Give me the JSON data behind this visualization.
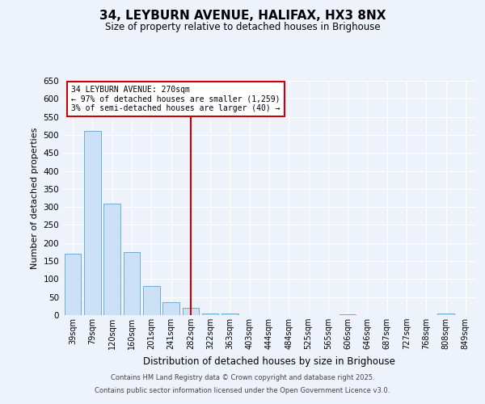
{
  "title": "34, LEYBURN AVENUE, HALIFAX, HX3 8NX",
  "subtitle": "Size of property relative to detached houses in Brighouse",
  "xlabel": "Distribution of detached houses by size in Brighouse",
  "ylabel": "Number of detached properties",
  "categories": [
    "39sqm",
    "79sqm",
    "120sqm",
    "160sqm",
    "201sqm",
    "241sqm",
    "282sqm",
    "322sqm",
    "363sqm",
    "403sqm",
    "444sqm",
    "484sqm",
    "525sqm",
    "565sqm",
    "606sqm",
    "646sqm",
    "687sqm",
    "727sqm",
    "768sqm",
    "808sqm",
    "849sqm"
  ],
  "values": [
    170,
    510,
    310,
    175,
    80,
    35,
    20,
    5,
    5,
    0,
    0,
    0,
    0,
    0,
    3,
    0,
    0,
    0,
    0,
    5,
    0
  ],
  "bar_color": "#cce0f5",
  "bar_edge_color": "#6aaed6",
  "red_line_index": 6,
  "red_line_color": "#cc0000",
  "annotation_title": "34 LEYBURN AVENUE: 270sqm",
  "annotation_line1": "← 97% of detached houses are smaller (1,259)",
  "annotation_line2": "3% of semi-detached houses are larger (40) →",
  "annotation_box_color": "#cc0000",
  "ylim": [
    0,
    650
  ],
  "yticks": [
    0,
    50,
    100,
    150,
    200,
    250,
    300,
    350,
    400,
    450,
    500,
    550,
    600,
    650
  ],
  "background_color": "#eef2fb",
  "grid_color": "#ffffff",
  "footer_line1": "Contains HM Land Registry data © Crown copyright and database right 2025.",
  "footer_line2": "Contains public sector information licensed under the Open Government Licence v3.0."
}
